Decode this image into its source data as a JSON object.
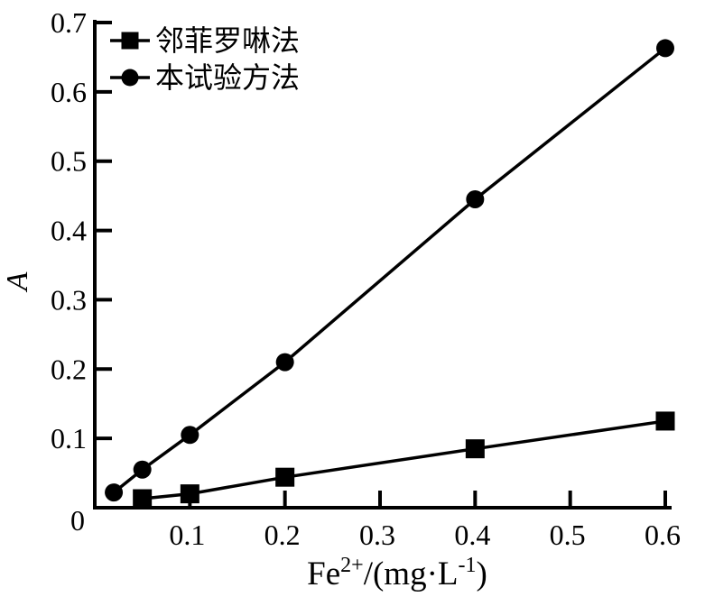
{
  "figure": {
    "background_color": "#ffffff",
    "ink_color": "#000000"
  },
  "chart_data": {
    "type": "line",
    "title": "",
    "xlabel_plain": "Fe2+/(mg·L-1)",
    "xlabel_parts": [
      {
        "text": "Fe",
        "sup": false
      },
      {
        "text": "2+",
        "sup": true
      },
      {
        "text": "/(mg·L",
        "sup": false
      },
      {
        "text": "-1",
        "sup": true
      },
      {
        "text": ")",
        "sup": false
      }
    ],
    "ylabel": "A",
    "xlim": [
      0,
      0.6
    ],
    "ylim": [
      0,
      0.7
    ],
    "x_ticks": [
      0.1,
      0.2,
      0.3,
      0.4,
      0.5,
      0.6
    ],
    "x_tick_labels": [
      "0.1",
      "0.2",
      "0.3",
      "0.4",
      "0.5",
      "0.6"
    ],
    "y_ticks": [
      0,
      0.1,
      0.2,
      0.3,
      0.4,
      0.5,
      0.6,
      0.7
    ],
    "y_tick_labels": [
      "0",
      "0.1",
      "0.2",
      "0.3",
      "0.4",
      "0.5",
      "0.6",
      "0.7"
    ],
    "grid": false,
    "legend_position": "top-left-inside",
    "series": [
      {
        "name": "邻菲罗啉法",
        "marker": "square",
        "color": "#000000",
        "x": [
          0.05,
          0.1,
          0.2,
          0.4,
          0.6
        ],
        "y": [
          0.013,
          0.02,
          0.044,
          0.085,
          0.125
        ]
      },
      {
        "name": "本试验方法",
        "marker": "circle",
        "color": "#000000",
        "x": [
          0.02,
          0.05,
          0.1,
          0.2,
          0.4,
          0.6
        ],
        "y": [
          0.022,
          0.055,
          0.105,
          0.21,
          0.445,
          0.663
        ]
      }
    ]
  }
}
